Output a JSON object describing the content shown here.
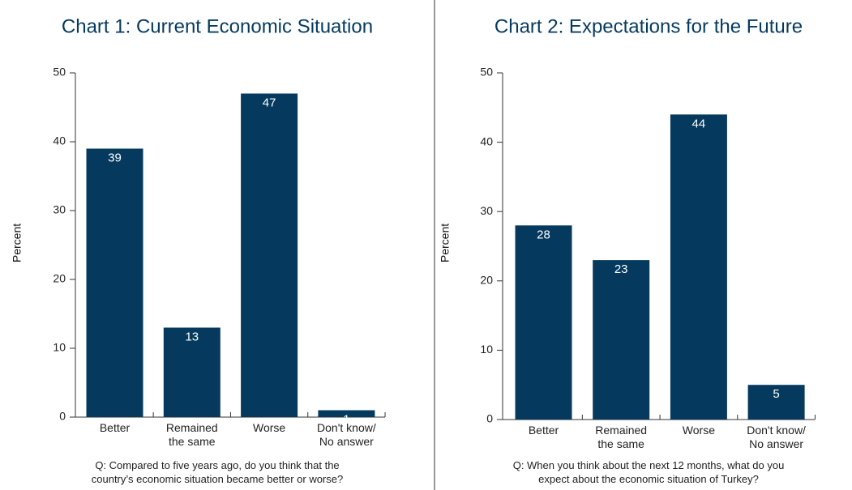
{
  "chart_data": [
    {
      "type": "bar",
      "title": "Chart 1: Current Economic Situation",
      "y_label": "Percent",
      "categories": [
        "Better",
        "Remained\nthe same",
        "Worse",
        "Don't know/\nNo answer"
      ],
      "values": [
        39,
        13,
        47,
        1
      ],
      "color": "#053a5e",
      "ylim": [
        0,
        50
      ],
      "yticks": [
        0,
        10,
        20,
        30,
        40,
        50
      ],
      "caption": "Q: Compared to five years ago, do you think that the\ncountry’s economic situation became better or worse?"
    },
    {
      "type": "bar",
      "title": "Chart 2: Expectations for the Future",
      "y_label": "Percent",
      "categories": [
        "Better",
        "Remained\nthe same",
        "Worse",
        "Don't know/\nNo answer"
      ],
      "values": [
        28,
        23,
        44,
        5
      ],
      "color": "#053a5e",
      "ylim": [
        0,
        50
      ],
      "yticks": [
        0,
        10,
        20,
        30,
        40,
        50
      ],
      "caption": "Q: When you think about the next 12 months, what do you\nexpect about the economic situation of Turkey?"
    }
  ]
}
